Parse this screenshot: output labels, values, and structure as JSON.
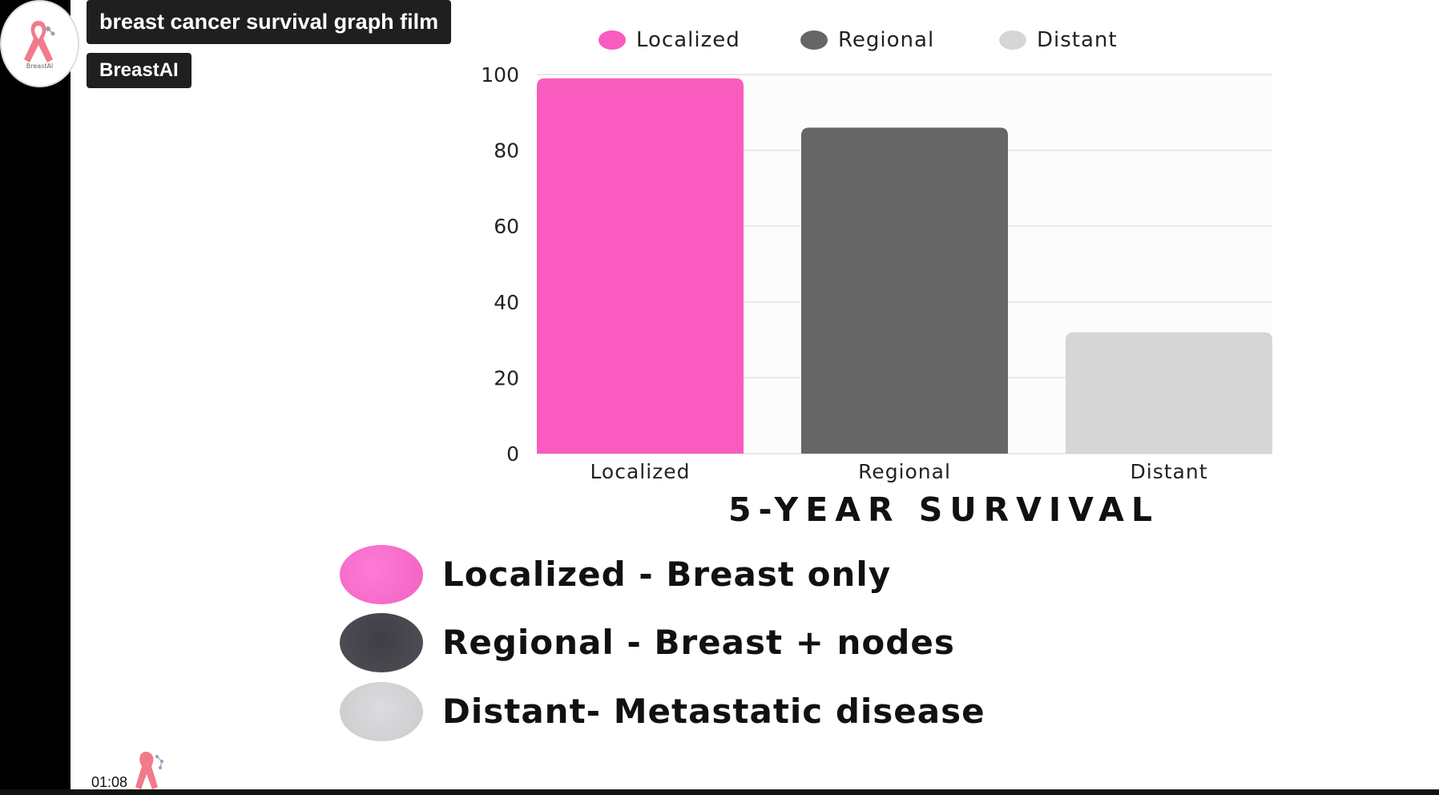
{
  "video": {
    "title": "breast cancer survival graph film",
    "channel": "BreastAI",
    "avatar_label": "BreastAI",
    "timestamp": "01:08"
  },
  "chart_data": {
    "type": "bar",
    "categories": [
      "Localized",
      "Regional",
      "Distant"
    ],
    "values": [
      99,
      86,
      32
    ],
    "colors": [
      "#f95bbe",
      "#666666",
      "#d6d6d6"
    ],
    "legend": [
      "Localized",
      "Regional",
      "Distant"
    ],
    "legend_placement": "top",
    "ylim": [
      0,
      100
    ],
    "yticks": [
      "0",
      "20",
      "40",
      "60",
      "80",
      "100"
    ],
    "grid": true,
    "xlabel": "5-YEAR SURVIVAL"
  },
  "stage_legend": [
    {
      "text": "Localized - Breast only",
      "color": "#f75fc8"
    },
    {
      "text": "Regional  - Breast + nodes",
      "color": "#4b4b52"
    },
    {
      "text": "Distant- Metastatic disease",
      "color": "#d2d2d4"
    }
  ],
  "icons": {
    "avatar": "pink-ribbon-icon",
    "mini_logo": "pink-ribbon-icon"
  }
}
